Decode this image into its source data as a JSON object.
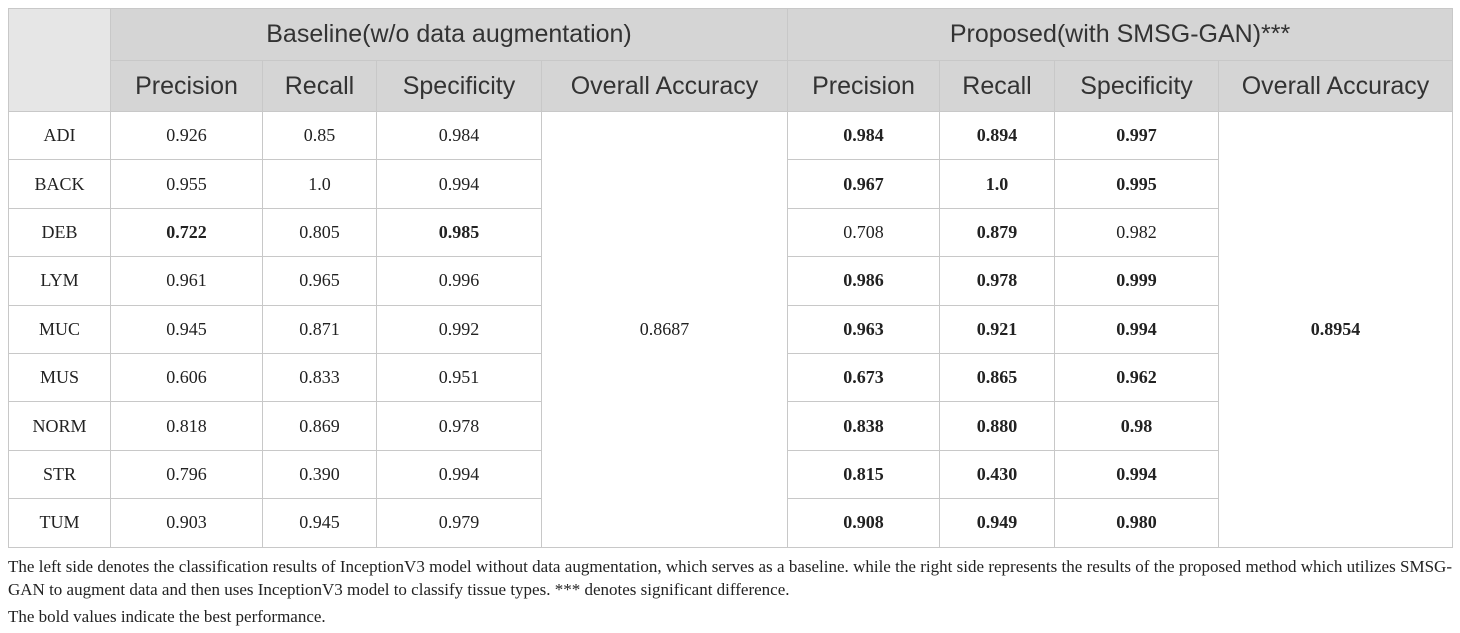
{
  "table": {
    "corner": "",
    "groups": [
      "Baseline(w/o data augmentation)",
      "Proposed(with SMSG-GAN)***"
    ],
    "columns": [
      "Precision",
      "Recall",
      "Specificity",
      "Overall Accuracy"
    ],
    "rows": [
      {
        "label": "ADI",
        "baseline": [
          "0.926",
          "0.85",
          "0.984"
        ],
        "baseline_bold": [
          false,
          false,
          false
        ],
        "proposed": [
          "0.984",
          "0.894",
          "0.997"
        ],
        "proposed_bold": [
          true,
          true,
          true
        ]
      },
      {
        "label": "BACK",
        "baseline": [
          "0.955",
          "1.0",
          "0.994"
        ],
        "baseline_bold": [
          false,
          false,
          false
        ],
        "proposed": [
          "0.967",
          "1.0",
          "0.995"
        ],
        "proposed_bold": [
          true,
          true,
          true
        ]
      },
      {
        "label": "DEB",
        "baseline": [
          "0.722",
          "0.805",
          "0.985"
        ],
        "baseline_bold": [
          true,
          false,
          true
        ],
        "proposed": [
          "0.708",
          "0.879",
          "0.982"
        ],
        "proposed_bold": [
          false,
          true,
          false
        ]
      },
      {
        "label": "LYM",
        "baseline": [
          "0.961",
          "0.965",
          "0.996"
        ],
        "baseline_bold": [
          false,
          false,
          false
        ],
        "proposed": [
          "0.986",
          "0.978",
          "0.999"
        ],
        "proposed_bold": [
          true,
          true,
          true
        ]
      },
      {
        "label": "MUC",
        "baseline": [
          "0.945",
          "0.871",
          "0.992"
        ],
        "baseline_bold": [
          false,
          false,
          false
        ],
        "proposed": [
          "0.963",
          "0.921",
          "0.994"
        ],
        "proposed_bold": [
          true,
          true,
          true
        ]
      },
      {
        "label": "MUS",
        "baseline": [
          "0.606",
          "0.833",
          "0.951"
        ],
        "baseline_bold": [
          false,
          false,
          false
        ],
        "proposed": [
          "0.673",
          "0.865",
          "0.962"
        ],
        "proposed_bold": [
          true,
          true,
          true
        ]
      },
      {
        "label": "NORM",
        "baseline": [
          "0.818",
          "0.869",
          "0.978"
        ],
        "baseline_bold": [
          false,
          false,
          false
        ],
        "proposed": [
          "0.838",
          "0.880",
          "0.98"
        ],
        "proposed_bold": [
          true,
          true,
          true
        ]
      },
      {
        "label": "STR",
        "baseline": [
          "0.796",
          "0.390",
          "0.994"
        ],
        "baseline_bold": [
          false,
          false,
          false
        ],
        "proposed": [
          "0.815",
          "0.430",
          "0.994"
        ],
        "proposed_bold": [
          true,
          true,
          true
        ]
      },
      {
        "label": "TUM",
        "baseline": [
          "0.903",
          "0.945",
          "0.979"
        ],
        "baseline_bold": [
          false,
          false,
          false
        ],
        "proposed": [
          "0.908",
          "0.949",
          "0.980"
        ],
        "proposed_bold": [
          true,
          true,
          true
        ]
      }
    ],
    "baseline_overall": "0.8687",
    "baseline_overall_bold": false,
    "proposed_overall": "0.8954",
    "proposed_overall_bold": true
  },
  "notes": [
    "The left side denotes the classification results of InceptionV3 model without data augmentation, which serves as a baseline. while the right side represents the results of the proposed method which utilizes SMSG-GAN to augment data and then uses InceptionV3 model to classify tissue types. *** denotes significant difference.",
    "The bold values indicate the best performance."
  ]
}
